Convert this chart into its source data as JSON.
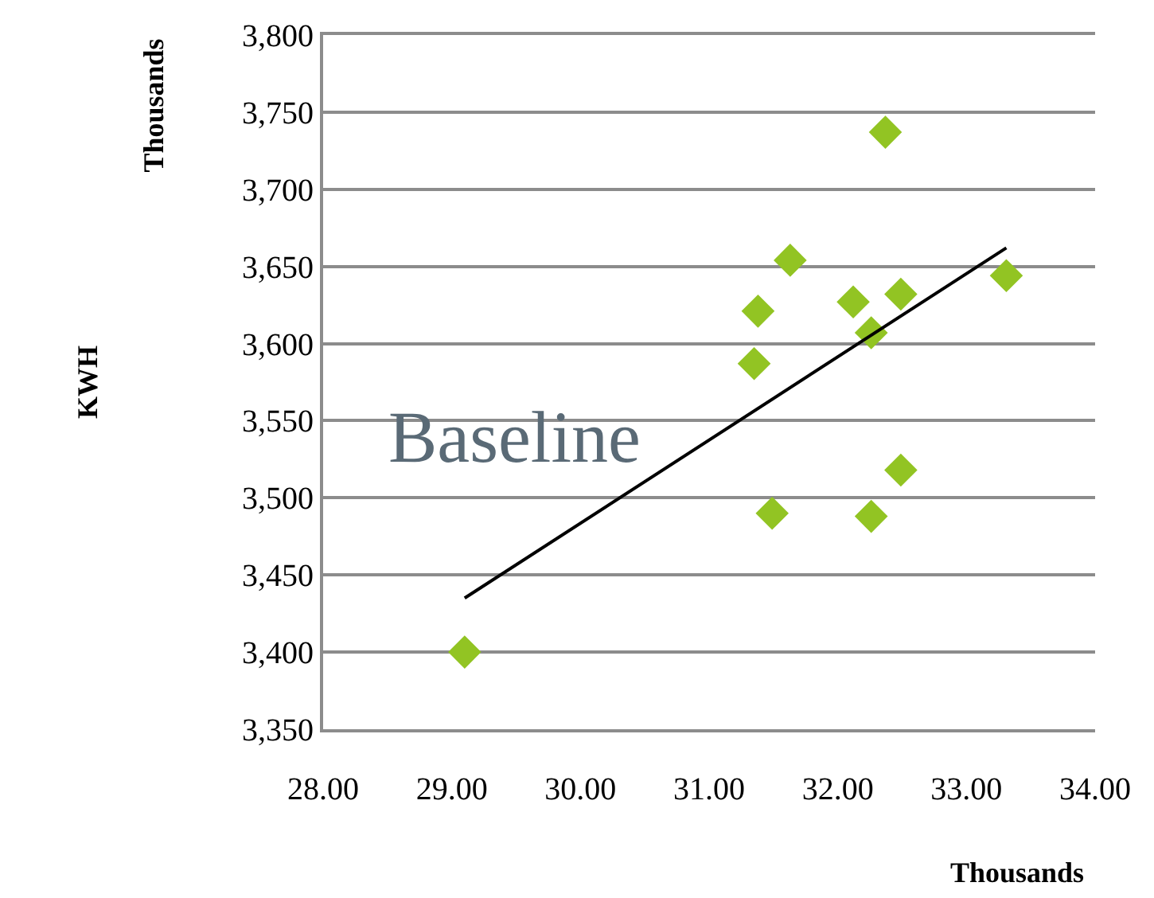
{
  "chart_data": {
    "type": "scatter",
    "xlabel": "Thousands",
    "ylabel": "KWH",
    "annotations": [
      "Thousands",
      "Baseline"
    ],
    "xlim": [
      28,
      34
    ],
    "xticks": [
      {
        "value": 28,
        "label": "28.00"
      },
      {
        "value": 29,
        "label": "29.00"
      },
      {
        "value": 30,
        "label": "30.00"
      },
      {
        "value": 31,
        "label": "31.00"
      },
      {
        "value": 32,
        "label": "32.00"
      },
      {
        "value": 33,
        "label": "33.00"
      },
      {
        "value": 34,
        "label": "34.00"
      }
    ],
    "ylim": [
      3350,
      3800
    ],
    "yticks": [
      {
        "value": 3350,
        "label": "3,350"
      },
      {
        "value": 3400,
        "label": "3,400"
      },
      {
        "value": 3450,
        "label": "3,450"
      },
      {
        "value": 3500,
        "label": "3,500"
      },
      {
        "value": 3550,
        "label": "3,550"
      },
      {
        "value": 3600,
        "label": "3,600"
      },
      {
        "value": 3650,
        "label": "3,650"
      },
      {
        "value": 3700,
        "label": "3,700"
      },
      {
        "value": 3750,
        "label": "3,750"
      },
      {
        "value": 3800,
        "label": "3,800"
      }
    ],
    "grid": "y",
    "marker": "diamond",
    "series": [
      {
        "color": "#92c423",
        "x": [
          29.1,
          31.35,
          31.38,
          31.63,
          31.49,
          32.12,
          32.26,
          32.37,
          32.49,
          32.49,
          32.26,
          33.31
        ],
        "values": [
          3400,
          3587,
          3621,
          3654,
          3490,
          3627,
          3607,
          3737,
          3632,
          3518,
          3488,
          3644
        ]
      },
      {
        "type": "line",
        "color": "#000000",
        "marker": "none",
        "line_style": "solid",
        "x": [
          29.1,
          33.31
        ],
        "values": [
          3435,
          3662
        ]
      }
    ]
  }
}
